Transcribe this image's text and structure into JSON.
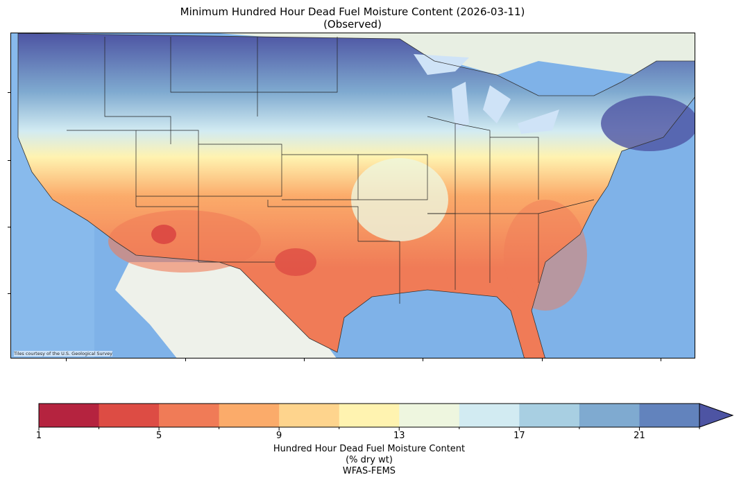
{
  "title": {
    "line1": "Minimum Hundred Hour Dead Fuel Moisture Content (2026-03-11)",
    "line2": "(Observed)"
  },
  "map": {
    "credit": "Tiles courtesy of the U.S. Geological Survey",
    "ocean_color": "#7fb2e8",
    "land_color": "#eef1ea",
    "outline_color": "#222222"
  },
  "colorbar": {
    "label_line1": "Hundred Hour Dead Fuel Moisture Content",
    "label_line2": "(% dry wt)",
    "label_line3": "WFAS-FEMS",
    "min": 1,
    "max": 24,
    "extend": "max",
    "tick_labels": [
      "1",
      "5",
      "9",
      "13",
      "17",
      "21"
    ],
    "colors": [
      "#b5233f",
      "#dd4c44",
      "#f07b57",
      "#fbab6a",
      "#fed48d",
      "#fff3b0",
      "#eef6df",
      "#d2ebf2",
      "#a8cfe2",
      "#7faad0",
      "#6283bd",
      "#4d54a3"
    ]
  }
}
